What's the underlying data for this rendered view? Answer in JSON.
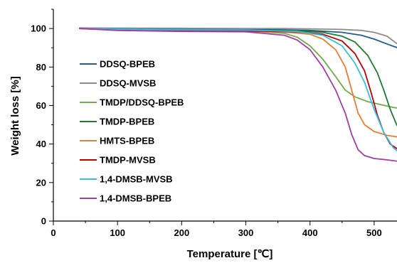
{
  "chart_data": {
    "type": "line",
    "title": "",
    "xlabel": "Temperature [℃]",
    "ylabel": "Weight loss [%]",
    "xlim": [
      0,
      550
    ],
    "ylim": [
      0,
      110
    ],
    "x_ticks": [
      0,
      100,
      200,
      300,
      400,
      500
    ],
    "y_ticks": [
      0,
      20,
      40,
      60,
      80,
      100
    ],
    "grid": false,
    "legend_position": "left",
    "series": [
      {
        "name": "DDSQ-BPEB",
        "color": "#1f5f8b",
        "points": [
          [
            40,
            100.2
          ],
          [
            100,
            99.8
          ],
          [
            200,
            99.6
          ],
          [
            300,
            99.5
          ],
          [
            360,
            99.3
          ],
          [
            400,
            99.0
          ],
          [
            450,
            98.0
          ],
          [
            480,
            96.5
          ],
          [
            500,
            94.5
          ],
          [
            520,
            92.0
          ],
          [
            540,
            89.5
          ],
          [
            550,
            88.5
          ]
        ]
      },
      {
        "name": "DDSQ-MVSB",
        "color": "#8c8c8c",
        "points": [
          [
            40,
            100.3
          ],
          [
            100,
            100.2
          ],
          [
            200,
            100.1
          ],
          [
            300,
            100.0
          ],
          [
            360,
            100.0
          ],
          [
            400,
            99.8
          ],
          [
            450,
            99.5
          ],
          [
            480,
            99.0
          ],
          [
            500,
            98.0
          ],
          [
            520,
            96.0
          ],
          [
            540,
            91.0
          ],
          [
            550,
            88.0
          ]
        ]
      },
      {
        "name": "TMDP/DDSQ-BPEB",
        "color": "#70ad47",
        "points": [
          [
            40,
            100.0
          ],
          [
            100,
            99.5
          ],
          [
            200,
            99.0
          ],
          [
            300,
            98.8
          ],
          [
            360,
            97.5
          ],
          [
            380,
            95.5
          ],
          [
            400,
            91.0
          ],
          [
            420,
            84.0
          ],
          [
            440,
            75.0
          ],
          [
            455,
            68.0
          ],
          [
            470,
            64.5
          ],
          [
            490,
            62.0
          ],
          [
            510,
            60.5
          ],
          [
            530,
            59.0
          ],
          [
            550,
            58.0
          ]
        ]
      },
      {
        "name": "TMDP-BPEB",
        "color": "#1e7b2f",
        "points": [
          [
            40,
            100.0
          ],
          [
            100,
            99.5
          ],
          [
            200,
            99.2
          ],
          [
            300,
            99.0
          ],
          [
            380,
            98.8
          ],
          [
            420,
            98.0
          ],
          [
            450,
            96.0
          ],
          [
            470,
            93.0
          ],
          [
            490,
            86.0
          ],
          [
            505,
            77.0
          ],
          [
            515,
            68.0
          ],
          [
            525,
            58.0
          ],
          [
            535,
            50.0
          ],
          [
            545,
            45.0
          ],
          [
            550,
            43.5
          ]
        ]
      },
      {
        "name": "HMTS-BPEB",
        "color": "#ed7d31",
        "points": [
          [
            40,
            100.0
          ],
          [
            100,
            99.2
          ],
          [
            200,
            98.8
          ],
          [
            300,
            98.6
          ],
          [
            360,
            98.2
          ],
          [
            400,
            97.0
          ],
          [
            420,
            94.5
          ],
          [
            440,
            89.0
          ],
          [
            455,
            80.0
          ],
          [
            465,
            68.0
          ],
          [
            475,
            56.0
          ],
          [
            485,
            50.0
          ],
          [
            500,
            46.5
          ],
          [
            520,
            44.5
          ],
          [
            540,
            43.5
          ],
          [
            550,
            43.0
          ]
        ]
      },
      {
        "name": "TMDP-MVSB",
        "color": "#c00000",
        "points": [
          [
            40,
            100.0
          ],
          [
            100,
            99.3
          ],
          [
            200,
            98.8
          ],
          [
            300,
            98.7
          ],
          [
            380,
            98.3
          ],
          [
            420,
            97.0
          ],
          [
            450,
            93.5
          ],
          [
            470,
            87.0
          ],
          [
            485,
            78.0
          ],
          [
            495,
            67.0
          ],
          [
            505,
            55.0
          ],
          [
            515,
            46.0
          ],
          [
            525,
            40.0
          ],
          [
            540,
            36.5
          ],
          [
            550,
            35.5
          ]
        ]
      },
      {
        "name": "1,4-DMSB-MVSB",
        "color": "#33bfe6",
        "points": [
          [
            40,
            100.0
          ],
          [
            100,
            99.5
          ],
          [
            200,
            99.3
          ],
          [
            300,
            99.2
          ],
          [
            380,
            98.5
          ],
          [
            420,
            96.5
          ],
          [
            450,
            91.0
          ],
          [
            470,
            82.0
          ],
          [
            485,
            72.0
          ],
          [
            500,
            58.0
          ],
          [
            515,
            46.0
          ],
          [
            530,
            38.0
          ],
          [
            545,
            34.0
          ],
          [
            550,
            33.0
          ]
        ]
      },
      {
        "name": "1,4-DMSB-BPEB",
        "color": "#a63ba6",
        "points": [
          [
            40,
            100.0
          ],
          [
            100,
            99.0
          ],
          [
            200,
            98.5
          ],
          [
            300,
            98.3
          ],
          [
            360,
            96.5
          ],
          [
            380,
            94.0
          ],
          [
            400,
            89.0
          ],
          [
            420,
            80.0
          ],
          [
            440,
            68.0
          ],
          [
            455,
            56.0
          ],
          [
            465,
            45.0
          ],
          [
            475,
            37.0
          ],
          [
            485,
            34.0
          ],
          [
            500,
            32.5
          ],
          [
            520,
            31.8
          ],
          [
            550,
            30.5
          ]
        ]
      }
    ]
  }
}
